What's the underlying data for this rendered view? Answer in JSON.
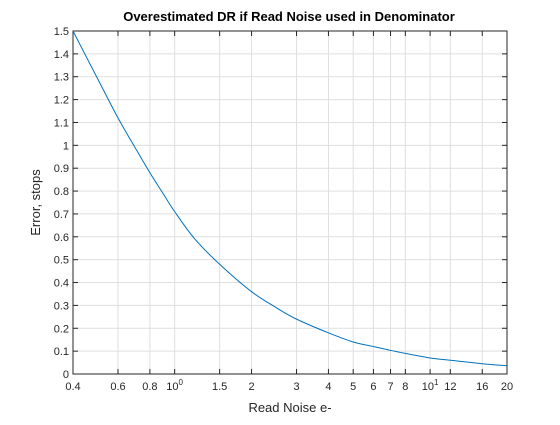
{
  "chart_data": {
    "type": "line",
    "title": "Overestimated DR if Read Noise used in Denominator",
    "xlabel": "Read Noise e-",
    "ylabel": "Error, stops",
    "xscale": "log",
    "xlim": [
      0.4,
      20
    ],
    "ylim": [
      0,
      1.5
    ],
    "grid": true,
    "line_color": "#0072BD",
    "x_ticks": [
      {
        "v": 0.4,
        "label": "0.4"
      },
      {
        "v": 0.6,
        "label": "0.6"
      },
      {
        "v": 0.8,
        "label": "0.8"
      },
      {
        "v": 1,
        "label": "10",
        "sup": "0"
      },
      {
        "v": 1.5,
        "label": "1.5"
      },
      {
        "v": 2,
        "label": "2"
      },
      {
        "v": 3,
        "label": "3"
      },
      {
        "v": 4,
        "label": "4"
      },
      {
        "v": 5,
        "label": "5"
      },
      {
        "v": 6,
        "label": "6"
      },
      {
        "v": 7,
        "label": "7"
      },
      {
        "v": 8,
        "label": "8"
      },
      {
        "v": 10,
        "label": "10",
        "sup": "1"
      },
      {
        "v": 12,
        "label": "12"
      },
      {
        "v": 16,
        "label": "16"
      },
      {
        "v": 20,
        "label": "20"
      }
    ],
    "y_ticks": [
      "0",
      "0.1",
      "0.2",
      "0.3",
      "0.4",
      "0.5",
      "0.6",
      "0.7",
      "0.8",
      "0.9",
      "1",
      "1.1",
      "1.2",
      "1.3",
      "1.4",
      "1.5"
    ],
    "series": [
      {
        "x": [
          0.4,
          0.5,
          0.6,
          0.7,
          0.8,
          0.9,
          1.0,
          1.2,
          1.5,
          2.0,
          2.5,
          3.0,
          4.0,
          5.0,
          6.0,
          8.0,
          10.0,
          12.0,
          16.0,
          20.0
        ],
        "y": [
          1.5,
          1.29,
          1.12,
          0.99,
          0.88,
          0.79,
          0.71,
          0.59,
          0.48,
          0.36,
          0.29,
          0.24,
          0.18,
          0.14,
          0.12,
          0.09,
          0.07,
          0.06,
          0.045,
          0.036
        ]
      }
    ]
  }
}
